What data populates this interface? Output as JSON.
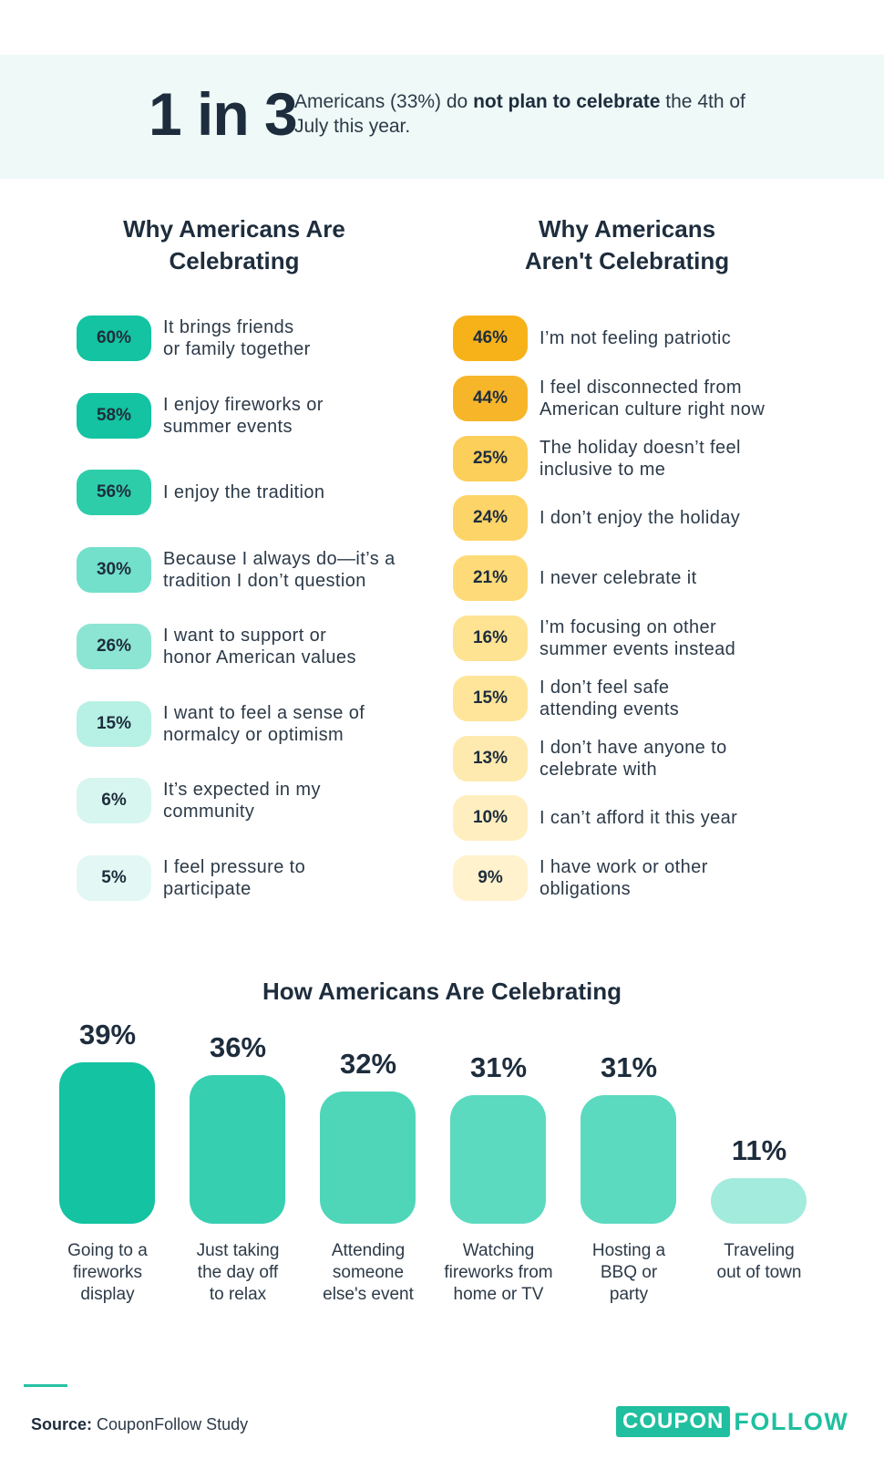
{
  "hero": {
    "big": "1 in 3",
    "pre": "Americans (33%) do ",
    "bold": "not plan to celebrate",
    "post": " the 4th of July this year."
  },
  "left": {
    "title_line1": "Why Americans Are",
    "title_line2": "Celebrating",
    "items": [
      {
        "value": "60%",
        "label": "It brings friends\nor family together",
        "color": "#13c3a1"
      },
      {
        "value": "58%",
        "label": "I enjoy fireworks or\nsummer events",
        "color": "#13c3a1"
      },
      {
        "value": "56%",
        "label": "I enjoy the tradition",
        "color": "#2ecdaa"
      },
      {
        "value": "30%",
        "label": "Because I always do—it’s a\ntradition I don’t question",
        "color": "#72e0cb"
      },
      {
        "value": "26%",
        "label": "I want to support or\nhonor American values",
        "color": "#8ce5d3"
      },
      {
        "value": "15%",
        "label": "I want to feel a sense of\nnormalcy or optimism",
        "color": "#b7f0e4"
      },
      {
        "value": "6%",
        "label": "It’s expected in my\ncommunity",
        "color": "#d7f6ef"
      },
      {
        "value": "5%",
        "label": "I feel pressure to\nparticipate",
        "color": "#e3f8f4"
      }
    ]
  },
  "right": {
    "title_line1": "Why Americans",
    "title_line2": "Aren't Celebrating",
    "items": [
      {
        "value": "46%",
        "label": "I’m not feeling patriotic",
        "color": "#f7b21a"
      },
      {
        "value": "44%",
        "label": "I feel disconnected from\nAmerican culture right now",
        "color": "#f7b62a"
      },
      {
        "value": "25%",
        "label": "The holiday doesn’t feel\ninclusive to me",
        "color": "#fcce5a"
      },
      {
        "value": "24%",
        "label": "I don’t enjoy the holiday",
        "color": "#fdd467"
      },
      {
        "value": "21%",
        "label": "I never celebrate it",
        "color": "#fedb78"
      },
      {
        "value": "16%",
        "label": "I’m focusing on other\nsummer events instead",
        "color": "#fee393"
      },
      {
        "value": "15%",
        "label": "I don’t feel safe\nattending events",
        "color": "#fee59a"
      },
      {
        "value": "13%",
        "label": "I don’t have anyone to\ncelebrate with",
        "color": "#feeaae"
      },
      {
        "value": "10%",
        "label": "I can’t afford it this year",
        "color": "#ffeebf"
      },
      {
        "value": "9%",
        "label": "I have work or other\nobligations",
        "color": "#fff2cd"
      }
    ]
  },
  "how": {
    "title": "How Americans Are Celebrating"
  },
  "chart_data": {
    "type": "bar",
    "title": "How Americans Are Celebrating",
    "categories": [
      "Going to a\nfireworks\ndisplay",
      "Just taking\nthe day off\nto relax",
      "Attending\nsomeone\nelse's event",
      "Watching\nfireworks from\nhome or TV",
      "Hosting a\nBBQ or\nparty",
      "Traveling\nout of town"
    ],
    "values": [
      39,
      36,
      32,
      31,
      31,
      11
    ],
    "value_labels": [
      "39%",
      "36%",
      "32%",
      "31%",
      "31%",
      "11%"
    ],
    "colors": [
      "#13c3a1",
      "#36cfb0",
      "#4fd6b9",
      "#5bdac0",
      "#5bdac0",
      "#a3ebdc"
    ],
    "xlabel": "",
    "ylabel": ""
  },
  "footer": {
    "source_label": "Source:",
    "source_text": " CouponFollow Study",
    "logo_box": "COUPON",
    "logo_text": "FOLLOW"
  }
}
